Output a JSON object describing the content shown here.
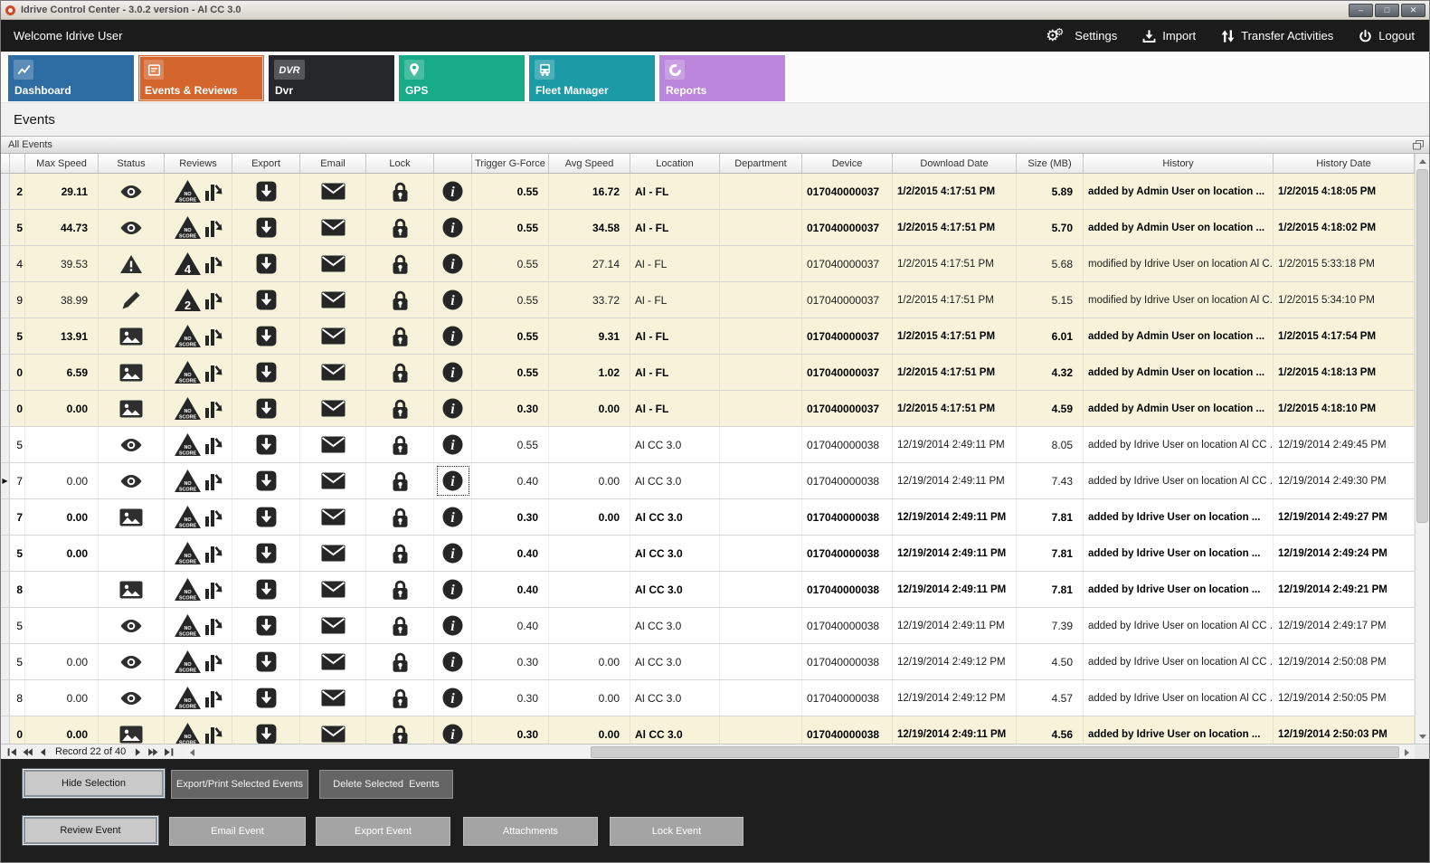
{
  "window": {
    "title": "Idrive Control Center - 3.0.2 version - Al CC 3.0",
    "controls": [
      {
        "name": "minimize-button",
        "glyph": "–"
      },
      {
        "name": "maximize-button",
        "glyph": "□"
      },
      {
        "name": "close-button",
        "glyph": "✕"
      }
    ]
  },
  "topbar": {
    "welcome": "Welcome Idrive User",
    "actions": [
      {
        "label": "Settings",
        "icon": "gears-icon"
      },
      {
        "label": "Import",
        "icon": "import-icon"
      },
      {
        "label": "Transfer Activities",
        "icon": "transfer-arrows-icon"
      },
      {
        "label": "Logout",
        "icon": "power-icon"
      }
    ]
  },
  "tabs": [
    {
      "label": "Dashboard",
      "icon": "line-chart-icon",
      "color": "#2e6da4",
      "selected": false
    },
    {
      "label": "Events & Reviews",
      "icon": "event-list-icon",
      "color": "#d4652c",
      "selected": true
    },
    {
      "label": "Dvr",
      "icon": "dvr-icon",
      "color": "#26272b",
      "selected": false
    },
    {
      "label": "GPS",
      "icon": "map-pin-icon",
      "color": "#17ab88",
      "selected": false
    },
    {
      "label": "Fleet Manager",
      "icon": "bus-icon",
      "color": "#1c9aa5",
      "selected": false
    },
    {
      "label": "Reports",
      "icon": "pie-chart-icon",
      "color": "#bc86dd",
      "selected": false
    }
  ],
  "page_title": "Events",
  "panel": {
    "title": "All Events",
    "corner_icon": "restore-panel-icon"
  },
  "colors": {
    "topbar_bg": "#1b1b1b",
    "highlight_row": "#f7f3db",
    "selected_tab": "#d4652c"
  },
  "grid": {
    "columns": [
      "Max Speed",
      "Status",
      "Reviews",
      "Export",
      "Email",
      "Lock",
      "",
      "Trigger G-Force",
      "Avg Speed",
      "Location",
      "Department",
      "Device",
      "Download Date",
      "Size (MB)",
      "History",
      "History Date"
    ],
    "row_action_icons": [
      "export-icon",
      "email-icon",
      "lock-icon",
      "info-icon"
    ],
    "rows": [
      {
        "id": "2",
        "current": false,
        "max_speed": "29.11",
        "status_icon": "eye-icon",
        "review_badge": "NO SCORE",
        "trigger_g_force": "0.55",
        "avg_speed": "16.72",
        "location": "Al - FL",
        "department": "",
        "device": "017040000037",
        "download_date": "1/2/2015 4:17:51 PM",
        "size_mb": "5.89",
        "history": "added by Admin User on location ...",
        "history_date": "1/2/2015 4:18:05 PM",
        "bold": true,
        "highlight": true,
        "info_focused": false
      },
      {
        "id": "5",
        "current": false,
        "max_speed": "44.73",
        "status_icon": "eye-icon",
        "review_badge": "NO SCORE",
        "trigger_g_force": "0.55",
        "avg_speed": "34.58",
        "location": "Al - FL",
        "department": "",
        "device": "017040000037",
        "download_date": "1/2/2015 4:17:51 PM",
        "size_mb": "5.70",
        "history": "added by Admin User on location ...",
        "history_date": "1/2/2015 4:18:02 PM",
        "bold": true,
        "highlight": true,
        "info_focused": false
      },
      {
        "id": "4",
        "current": false,
        "max_speed": "39.53",
        "status_icon": "warning-icon",
        "review_badge": "4",
        "trigger_g_force": "0.55",
        "avg_speed": "27.14",
        "location": "Al - FL",
        "department": "",
        "device": "017040000037",
        "download_date": "1/2/2015 4:17:51 PM",
        "size_mb": "5.68",
        "history": "modified by Idrive User on location Al C...",
        "history_date": "1/2/2015 5:33:18 PM",
        "bold": false,
        "highlight": true,
        "info_focused": false
      },
      {
        "id": "9",
        "current": false,
        "max_speed": "38.99",
        "status_icon": "pencil-icon",
        "review_badge": "2",
        "trigger_g_force": "0.55",
        "avg_speed": "33.72",
        "location": "Al - FL",
        "department": "",
        "device": "017040000037",
        "download_date": "1/2/2015 4:17:51 PM",
        "size_mb": "5.15",
        "history": "modified by Idrive User on location Al C...",
        "history_date": "1/2/2015 5:34:10 PM",
        "bold": false,
        "highlight": true,
        "info_focused": false
      },
      {
        "id": "5",
        "current": false,
        "max_speed": "13.91",
        "status_icon": "image-icon",
        "review_badge": "NO SCORE",
        "trigger_g_force": "0.55",
        "avg_speed": "9.31",
        "location": "Al - FL",
        "department": "",
        "device": "017040000037",
        "download_date": "1/2/2015 4:17:51 PM",
        "size_mb": "6.01",
        "history": "added by Admin User on location ...",
        "history_date": "1/2/2015 4:17:54 PM",
        "bold": true,
        "highlight": true,
        "info_focused": false
      },
      {
        "id": "0",
        "current": false,
        "max_speed": "6.59",
        "status_icon": "image-icon",
        "review_badge": "NO SCORE",
        "trigger_g_force": "0.55",
        "avg_speed": "1.02",
        "location": "Al - FL",
        "department": "",
        "device": "017040000037",
        "download_date": "1/2/2015 4:17:51 PM",
        "size_mb": "4.32",
        "history": "added by Admin User on location ...",
        "history_date": "1/2/2015 4:18:13 PM",
        "bold": true,
        "highlight": true,
        "info_focused": false
      },
      {
        "id": "0",
        "current": false,
        "max_speed": "0.00",
        "status_icon": "image-icon",
        "review_badge": "NO SCORE",
        "trigger_g_force": "0.30",
        "avg_speed": "0.00",
        "location": "Al - FL",
        "department": "",
        "device": "017040000037",
        "download_date": "1/2/2015 4:17:51 PM",
        "size_mb": "4.59",
        "history": "added by Admin User on location ...",
        "history_date": "1/2/2015 4:18:10 PM",
        "bold": true,
        "highlight": true,
        "info_focused": false
      },
      {
        "id": "5",
        "current": false,
        "max_speed": "",
        "status_icon": "eye-icon",
        "review_badge": "NO SCORE",
        "trigger_g_force": "0.55",
        "avg_speed": "",
        "location": "Al CC 3.0",
        "department": "",
        "device": "017040000038",
        "download_date": "12/19/2014 2:49:11 PM",
        "size_mb": "8.05",
        "history": "added by Idrive User on location Al CC ...",
        "history_date": "12/19/2014 2:49:45 PM",
        "bold": false,
        "highlight": false,
        "info_focused": false
      },
      {
        "id": "7",
        "current": true,
        "max_speed": "0.00",
        "status_icon": "eye-icon",
        "review_badge": "NO SCORE",
        "trigger_g_force": "0.40",
        "avg_speed": "0.00",
        "location": "Al CC 3.0",
        "department": "",
        "device": "017040000038",
        "download_date": "12/19/2014 2:49:11 PM",
        "size_mb": "7.43",
        "history": "added by Idrive User on location Al CC ...",
        "history_date": "12/19/2014 2:49:30 PM",
        "bold": false,
        "highlight": false,
        "info_focused": true
      },
      {
        "id": "7",
        "current": false,
        "max_speed": "0.00",
        "status_icon": "image-icon",
        "review_badge": "NO SCORE",
        "trigger_g_force": "0.30",
        "avg_speed": "0.00",
        "location": "Al CC 3.0",
        "department": "",
        "device": "017040000038",
        "download_date": "12/19/2014 2:49:11 PM",
        "size_mb": "7.81",
        "history": "added by Idrive User on location ...",
        "history_date": "12/19/2014 2:49:27 PM",
        "bold": true,
        "highlight": false,
        "info_focused": false
      },
      {
        "id": "5",
        "current": false,
        "max_speed": "0.00",
        "status_icon": "none",
        "review_badge": "NO SCORE",
        "trigger_g_force": "0.40",
        "avg_speed": "",
        "location": "Al CC 3.0",
        "department": "",
        "device": "017040000038",
        "download_date": "12/19/2014 2:49:11 PM",
        "size_mb": "7.81",
        "history": "added by Idrive User on location ...",
        "history_date": "12/19/2014 2:49:24 PM",
        "bold": true,
        "highlight": false,
        "info_focused": false
      },
      {
        "id": "8",
        "current": false,
        "max_speed": "",
        "status_icon": "image-icon",
        "review_badge": "NO SCORE",
        "trigger_g_force": "0.40",
        "avg_speed": "",
        "location": "Al CC 3.0",
        "department": "",
        "device": "017040000038",
        "download_date": "12/19/2014 2:49:11 PM",
        "size_mb": "7.81",
        "history": "added by Idrive User on location ...",
        "history_date": "12/19/2014 2:49:21 PM",
        "bold": true,
        "highlight": false,
        "info_focused": false
      },
      {
        "id": "5",
        "current": false,
        "max_speed": "",
        "status_icon": "eye-icon",
        "review_badge": "NO SCORE",
        "trigger_g_force": "0.40",
        "avg_speed": "",
        "location": "Al CC 3.0",
        "department": "",
        "device": "017040000038",
        "download_date": "12/19/2014 2:49:11 PM",
        "size_mb": "7.39",
        "history": "added by Idrive User on location Al CC ...",
        "history_date": "12/19/2014 2:49:17 PM",
        "bold": false,
        "highlight": false,
        "info_focused": false
      },
      {
        "id": "5",
        "current": false,
        "max_speed": "0.00",
        "status_icon": "eye-icon",
        "review_badge": "NO SCORE",
        "trigger_g_force": "0.30",
        "avg_speed": "0.00",
        "location": "Al CC 3.0",
        "department": "",
        "device": "017040000038",
        "download_date": "12/19/2014 2:49:12 PM",
        "size_mb": "4.50",
        "history": "added by Idrive User on location Al CC ...",
        "history_date": "12/19/2014 2:50:08 PM",
        "bold": false,
        "highlight": false,
        "info_focused": false
      },
      {
        "id": "8",
        "current": false,
        "max_speed": "0.00",
        "status_icon": "eye-icon",
        "review_badge": "NO SCORE",
        "trigger_g_force": "0.30",
        "avg_speed": "0.00",
        "location": "Al CC 3.0",
        "department": "",
        "device": "017040000038",
        "download_date": "12/19/2014 2:49:12 PM",
        "size_mb": "4.57",
        "history": "added by Idrive User on location Al CC ...",
        "history_date": "12/19/2014 2:50:05 PM",
        "bold": false,
        "highlight": false,
        "info_focused": false
      },
      {
        "id": "0",
        "current": false,
        "max_speed": "0.00",
        "status_icon": "image-icon",
        "review_badge": "NO SCORE",
        "trigger_g_force": "0.30",
        "avg_speed": "0.00",
        "location": "Al CC 3.0",
        "department": "",
        "device": "017040000038",
        "download_date": "12/19/2014 2:49:11 PM",
        "size_mb": "4.56",
        "history": "added by Idrive User on location ...",
        "history_date": "12/19/2014 2:50:03 PM",
        "bold": true,
        "highlight": true,
        "info_focused": false
      }
    ]
  },
  "pager": {
    "record_text": "Record 22 of 40",
    "buttons_left": [
      "first-record-icon",
      "previous-page-icon",
      "previous-record-icon"
    ],
    "buttons_right": [
      "next-record-icon",
      "next-page-icon",
      "last-record-icon"
    ]
  },
  "action_bar": {
    "row1": [
      {
        "label": "Hide Selection",
        "style": "light"
      },
      {
        "label": "Export/Print Selected Events",
        "style": "dark"
      },
      {
        "label": "Delete Selected  Events",
        "style": "dark"
      }
    ],
    "row2": [
      {
        "label": "Review Event",
        "style": "light"
      },
      {
        "label": "Email Event",
        "style": "mid"
      },
      {
        "label": "Export Event",
        "style": "mid"
      },
      {
        "label": "Attachments",
        "style": "mid"
      },
      {
        "label": "Lock Event",
        "style": "mid"
      }
    ]
  }
}
